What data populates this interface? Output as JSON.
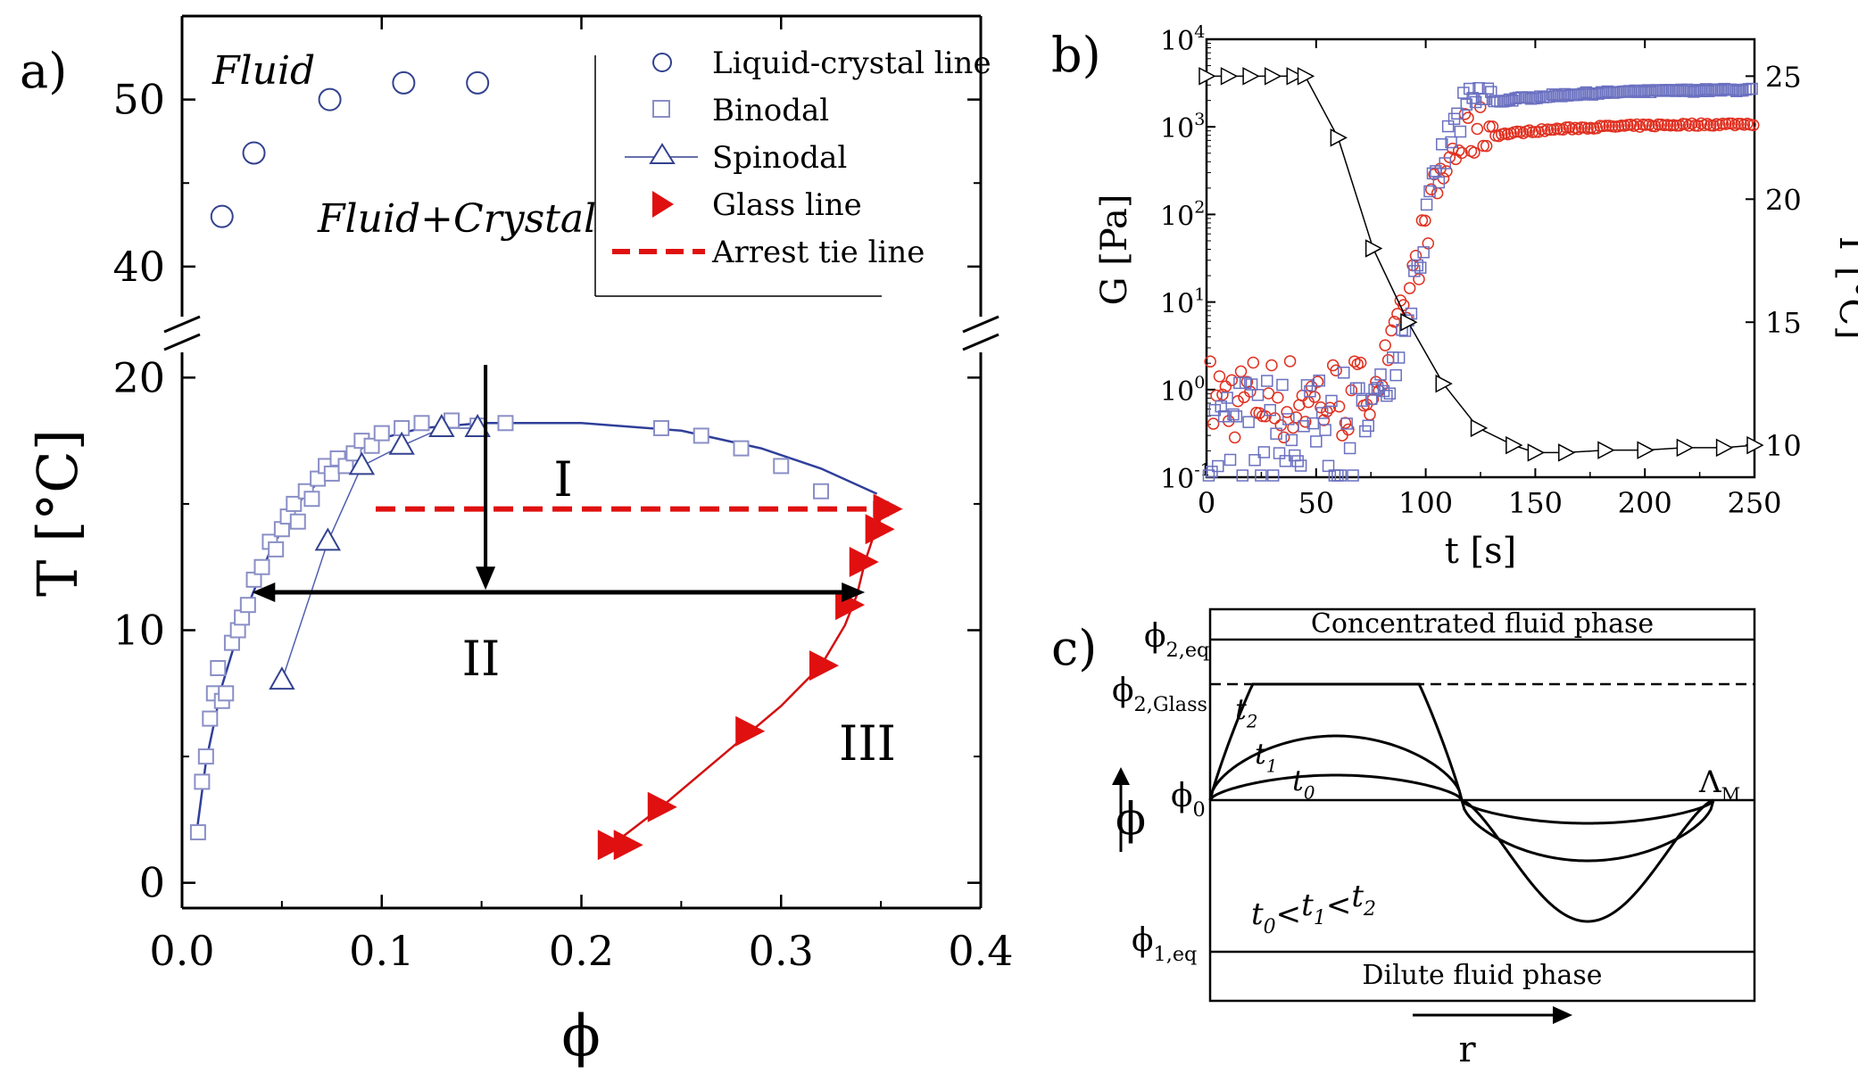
{
  "chart_data": [
    {
      "id": "a",
      "type": "scatter",
      "panel_label": "a)",
      "xlabel": "ϕ",
      "ylabel": "T [°C]",
      "xlim": [
        0.0,
        0.4
      ],
      "ylim_lower": [
        -1,
        21
      ],
      "ylim_upper": [
        37,
        55
      ],
      "x_ticks": [
        "0.0",
        "0.1",
        "0.2",
        "0.3",
        "0.4"
      ],
      "y_ticks_lower": [
        "0",
        "10",
        "20"
      ],
      "y_ticks_upper": [
        "40",
        "50"
      ],
      "region_labels": [
        "Fluid",
        "Fluid+Crystal",
        "I",
        "II",
        "III"
      ],
      "legend": [
        {
          "label": "Liquid-crystal line",
          "marker": "circle"
        },
        {
          "label": "Binodal",
          "marker": "square"
        },
        {
          "label": "Spinodal",
          "marker": "triangle-up"
        },
        {
          "label": "Glass line",
          "marker": "triangle-right"
        },
        {
          "label": "Arrest tie line",
          "marker": "dashed"
        }
      ],
      "series": {
        "liquid_crystal": {
          "x": [
            0.02,
            0.036,
            0.074,
            0.111,
            0.148
          ],
          "y": [
            43,
            46.8,
            50,
            51,
            51
          ]
        },
        "binodal": {
          "x": [
            0.008,
            0.01,
            0.012,
            0.014,
            0.016,
            0.018,
            0.02,
            0.022,
            0.025,
            0.028,
            0.03,
            0.033,
            0.036,
            0.04,
            0.044,
            0.047,
            0.05,
            0.053,
            0.056,
            0.058,
            0.062,
            0.065,
            0.068,
            0.072,
            0.075,
            0.078,
            0.082,
            0.086,
            0.09,
            0.095,
            0.1,
            0.11,
            0.12,
            0.135,
            0.148,
            0.162,
            0.24,
            0.26,
            0.28,
            0.3,
            0.32,
            0.35
          ],
          "y": [
            2,
            4,
            5,
            6.5,
            7.5,
            8.5,
            7.2,
            7.5,
            9.5,
            10,
            10.5,
            11,
            12,
            12.5,
            13.5,
            13.2,
            14,
            14.5,
            15,
            14.3,
            15.5,
            15.2,
            16,
            16.5,
            16.2,
            16.8,
            16.5,
            17,
            17.5,
            17.3,
            17.8,
            18,
            18.2,
            18.3,
            18.1,
            18.2,
            18,
            17.7,
            17.2,
            16.5,
            15.5,
            14.8
          ]
        },
        "spinodal": {
          "x": [
            0.05,
            0.073,
            0.09,
            0.11,
            0.13,
            0.148
          ],
          "y": [
            8,
            13.5,
            16.5,
            17.3,
            18,
            18
          ]
        },
        "glass": {
          "x": [
            0.214,
            0.222,
            0.239,
            0.283,
            0.32,
            0.333,
            0.34,
            0.348,
            0.352
          ],
          "y": [
            1.5,
            1.5,
            3,
            6,
            8.6,
            11,
            12.7,
            14,
            14.8
          ]
        },
        "arrest_tie_line": {
          "x": [
            0.097,
            0.352
          ],
          "y": [
            14.8,
            14.8
          ]
        },
        "arrows": {
          "vertical": {
            "x": 0.152,
            "y_from": 20.5,
            "y_to": 11.6
          },
          "horizontal": {
            "y": 11.5,
            "x_from": 0.035,
            "x_to": 0.342
          }
        }
      }
    },
    {
      "id": "b",
      "type": "scatter",
      "panel_label": "b)",
      "xlabel": "t [s]",
      "ylabel_left": "G [Pa]",
      "ylabel_right": "T [°C]",
      "xlim": [
        0,
        250
      ],
      "ylim_left_log10": [
        -1,
        4
      ],
      "ylim_right": [
        8.7,
        26.5
      ],
      "x_ticks": [
        "0",
        "50",
        "100",
        "150",
        "200",
        "250"
      ],
      "y_ticks_right": [
        "10",
        "15",
        "20",
        "25"
      ],
      "y_tick_powers": [
        "-1",
        "0",
        "1",
        "2",
        "3",
        "4"
      ],
      "y_tick_base": "10",
      "series": {
        "temperature": {
          "t": [
            0,
            10,
            20,
            30,
            40,
            45,
            60,
            76,
            92,
            108,
            124,
            140,
            150,
            164,
            182,
            200,
            218,
            236,
            250
          ],
          "T": [
            25,
            25,
            25,
            25,
            25,
            25,
            22.5,
            18,
            15,
            12.5,
            10.7,
            10,
            9.7,
            9.7,
            9.8,
            9.8,
            9.9,
            9.9,
            10
          ]
        },
        "G_prime": "blue squares: noisy ~0.1-5 Pa for t<70 s, sharp rise 75-125 s, plateau ~2.7e3 Pa",
        "G_double_prime": "red circles: noisy ~0.2-5 Pa for t<70 s, sharp rise 75-125 s, plateau ~1.1e3 Pa"
      }
    },
    {
      "id": "c",
      "type": "diagram",
      "panel_label": "c)",
      "top_text": "Concentrated fluid phase",
      "bottom_text": "Dilute fluid phase",
      "x_axis_label": "r",
      "y_axis_label": "ϕ",
      "levels": [
        {
          "sym": "ϕ",
          "sub": "2,eq"
        },
        {
          "sym": "ϕ",
          "sub": "2,Glass"
        },
        {
          "sym": "ϕ",
          "sub": "0"
        },
        {
          "sym": "ϕ",
          "sub": "1,eq"
        }
      ],
      "curve_labels": [
        {
          "sym": "t",
          "sub": "2"
        },
        {
          "sym": "t",
          "sub": "1"
        },
        {
          "sym": "t",
          "sub": "0"
        }
      ],
      "lambda": {
        "sym": "Λ",
        "sub": "M"
      },
      "inequality": {
        "parts": [
          [
            "t",
            "0"
          ],
          [
            "t",
            "1"
          ],
          [
            "t",
            "2"
          ]
        ],
        "sign": "<"
      }
    }
  ]
}
